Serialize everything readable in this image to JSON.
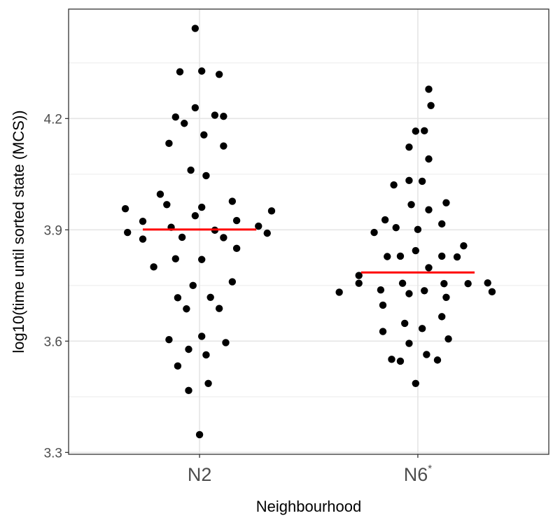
{
  "chart_data": {
    "type": "scatter",
    "style": "jittered strip plot with median line per group",
    "xlabel": "Neighbourhood",
    "ylabel": "log10(time until sorted state (MCS))",
    "categories": [
      {
        "label": "N2",
        "superscript": ""
      },
      {
        "label": "N6",
        "superscript": "*"
      }
    ],
    "ylim": [
      3.295,
      4.495
    ],
    "yticks": [
      3.3,
      3.6,
      3.9,
      4.2
    ],
    "ytick_labels": [
      "3.3",
      "3.6",
      "3.9",
      "4.2"
    ],
    "grid": true,
    "legend": "none",
    "point_color": "#000000",
    "median_color": "#ff0000",
    "series": [
      {
        "category": "N2",
        "median": 3.901,
        "points": [
          [
            -0.34,
            3.957
          ],
          [
            -0.33,
            3.893
          ],
          [
            -0.26,
            3.923
          ],
          [
            -0.26,
            3.875
          ],
          [
            -0.21,
            3.8
          ],
          [
            -0.18,
            3.996
          ],
          [
            -0.15,
            3.968
          ],
          [
            -0.14,
            4.133
          ],
          [
            -0.13,
            3.907
          ],
          [
            -0.11,
            4.204
          ],
          [
            -0.11,
            3.822
          ],
          [
            -0.1,
            3.717
          ],
          [
            -0.1,
            3.533
          ],
          [
            -0.09,
            4.326
          ],
          [
            -0.08,
            3.88
          ],
          [
            -0.07,
            4.187
          ],
          [
            -0.06,
            3.687
          ],
          [
            -0.14,
            3.604
          ],
          [
            -0.05,
            3.578
          ],
          [
            -0.05,
            3.467
          ],
          [
            -0.04,
            4.061
          ],
          [
            -0.03,
            3.75
          ],
          [
            -0.02,
            3.938
          ],
          [
            -0.02,
            4.229
          ],
          [
            -0.02,
            4.443
          ],
          [
            0.0,
            3.348
          ],
          [
            0.01,
            3.82
          ],
          [
            0.01,
            4.328
          ],
          [
            0.01,
            3.961
          ],
          [
            0.01,
            3.613
          ],
          [
            0.02,
            4.156
          ],
          [
            0.03,
            4.046
          ],
          [
            0.03,
            3.563
          ],
          [
            0.04,
            3.486
          ],
          [
            0.05,
            3.718
          ],
          [
            0.07,
            4.209
          ],
          [
            0.07,
            3.899
          ],
          [
            0.09,
            3.688
          ],
          [
            0.09,
            4.319
          ],
          [
            0.11,
            4.206
          ],
          [
            0.11,
            4.126
          ],
          [
            0.11,
            3.879
          ],
          [
            0.12,
            3.596
          ],
          [
            0.15,
            3.977
          ],
          [
            0.15,
            3.76
          ],
          [
            0.17,
            3.85
          ],
          [
            0.17,
            3.925
          ],
          [
            0.27,
            3.91
          ],
          [
            0.31,
            3.891
          ],
          [
            0.33,
            3.951
          ]
        ]
      },
      {
        "category": "N6",
        "median": 3.785,
        "points": [
          [
            -0.36,
            3.732
          ],
          [
            -0.27,
            3.777
          ],
          [
            -0.27,
            3.756
          ],
          [
            -0.2,
            3.893
          ],
          [
            -0.17,
            3.738
          ],
          [
            -0.16,
            3.697
          ],
          [
            -0.16,
            3.626
          ],
          [
            -0.15,
            3.927
          ],
          [
            -0.14,
            3.828
          ],
          [
            -0.12,
            3.551
          ],
          [
            -0.11,
            4.021
          ],
          [
            -0.1,
            3.906
          ],
          [
            -0.08,
            3.546
          ],
          [
            -0.08,
            3.829
          ],
          [
            -0.07,
            3.756
          ],
          [
            -0.06,
            3.648
          ],
          [
            -0.04,
            4.123
          ],
          [
            -0.04,
            3.728
          ],
          [
            -0.04,
            3.594
          ],
          [
            -0.04,
            4.033
          ],
          [
            -0.03,
            3.968
          ],
          [
            -0.01,
            3.844
          ],
          [
            -0.01,
            4.166
          ],
          [
            -0.01,
            3.486
          ],
          [
            0.0,
            3.901
          ],
          [
            0.02,
            4.031
          ],
          [
            0.02,
            3.634
          ],
          [
            0.03,
            3.736
          ],
          [
            0.03,
            4.167
          ],
          [
            0.04,
            3.564
          ],
          [
            0.05,
            3.798
          ],
          [
            0.05,
            4.091
          ],
          [
            0.05,
            4.279
          ],
          [
            0.05,
            3.954
          ],
          [
            0.06,
            4.235
          ],
          [
            0.09,
            3.549
          ],
          [
            0.11,
            3.666
          ],
          [
            0.11,
            3.916
          ],
          [
            0.11,
            3.829
          ],
          [
            0.12,
            3.755
          ],
          [
            0.13,
            3.973
          ],
          [
            0.13,
            3.718
          ],
          [
            0.14,
            3.606
          ],
          [
            0.18,
            3.827
          ],
          [
            0.21,
            3.857
          ],
          [
            0.23,
            3.755
          ],
          [
            0.32,
            3.757
          ],
          [
            0.34,
            3.733
          ]
        ]
      }
    ]
  }
}
